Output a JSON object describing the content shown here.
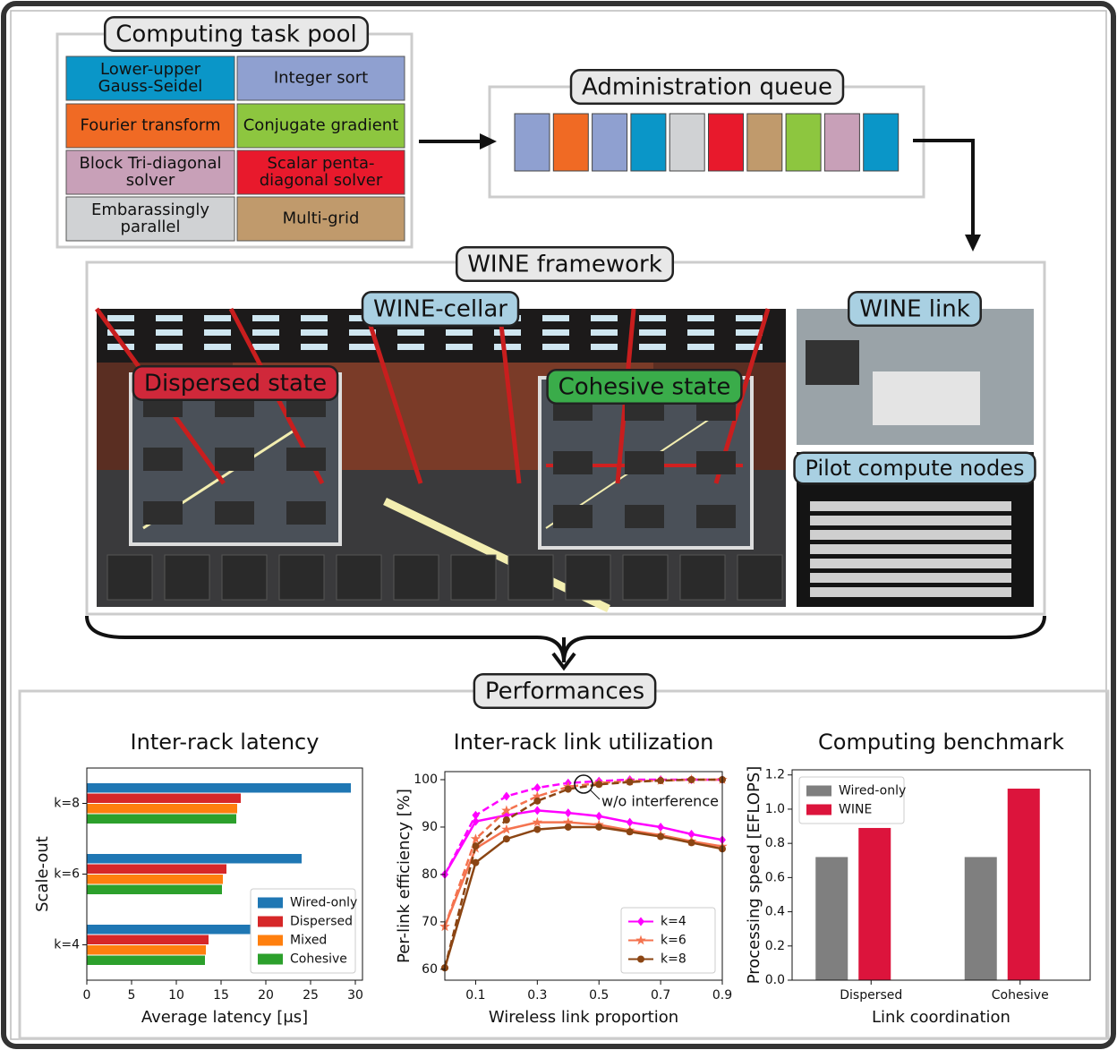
{
  "task_pool": {
    "title": "Computing task pool",
    "tasks": [
      {
        "lines": [
          "Lower-upper",
          "Gauss-Seidel"
        ],
        "color": "#0a96c8"
      },
      {
        "lines": [
          "Integer sort"
        ],
        "color": "#8fa0d0"
      },
      {
        "lines": [
          "Fourier transform"
        ],
        "color": "#f06a24"
      },
      {
        "lines": [
          "Conjugate gradient"
        ],
        "color": "#8dc63f"
      },
      {
        "lines": [
          "Block Tri-diagonal",
          "solver"
        ],
        "color": "#c8a0b8"
      },
      {
        "lines": [
          "Scalar penta-",
          "diagonal solver"
        ],
        "color": "#e8192c"
      },
      {
        "lines": [
          "Embarassingly",
          "parallel"
        ],
        "color": "#d0d2d4"
      },
      {
        "lines": [
          "Multi-grid"
        ],
        "color": "#c09a6c"
      }
    ]
  },
  "queue": {
    "title": "Administration queue",
    "colors": [
      "#8fa0d0",
      "#f06a24",
      "#8fa0d0",
      "#0a96c8",
      "#d0d2d4",
      "#e8192c",
      "#c09a6c",
      "#8dc63f",
      "#c8a0b8",
      "#0a96c8"
    ]
  },
  "framework": {
    "title": "WINE framework",
    "cellar": "WINE-cellar",
    "dispersed": "Dispersed state",
    "cohesive": "Cohesive state",
    "link": "WINE link",
    "nodes": "Pilot compute nodes"
  },
  "performances": {
    "title": "Performances"
  },
  "chart_data": [
    {
      "type": "barh",
      "title": "Inter-rack latency",
      "xlabel": "Average latency [μs]",
      "ylabel": "Scale-out",
      "categories": [
        "k=4",
        "k=6",
        "k=8"
      ],
      "series": [
        {
          "name": "Wired-only",
          "color": "#1f77b4",
          "values": [
            18.5,
            24,
            29.5
          ]
        },
        {
          "name": "Dispersed",
          "color": "#d62728",
          "values": [
            13.6,
            15.6,
            17.2
          ]
        },
        {
          "name": "Mixed",
          "color": "#ff7f0e",
          "values": [
            13.3,
            15.2,
            16.8
          ]
        },
        {
          "name": "Cohesive",
          "color": "#2ca02c",
          "values": [
            13.2,
            15.1,
            16.7
          ]
        }
      ],
      "xlim": [
        0,
        30.8
      ],
      "xticks": [
        0,
        5,
        10,
        15,
        20,
        25,
        30
      ],
      "legend": "lower right"
    },
    {
      "type": "line",
      "title": "Inter-rack link utilization",
      "xlabel": "Wireless link proportion",
      "ylabel": "Per-link efficiency [%]",
      "annotation": "w/o interference",
      "x": [
        0,
        0.1,
        0.2,
        0.3,
        0.4,
        0.5,
        0.6,
        0.7,
        0.8,
        0.9
      ],
      "series": [
        {
          "name": "k=4",
          "color": "#ff00ff",
          "marker": "diamond",
          "values": [
            80,
            91.2,
            92.5,
            93.5,
            93,
            92.3,
            91,
            90,
            88.5,
            87.3
          ],
          "values_wo_interference": [
            80,
            92.5,
            96.5,
            98.3,
            99.3,
            99.7,
            100,
            100,
            100,
            100
          ]
        },
        {
          "name": "k=6",
          "color": "#f4734f",
          "marker": "star",
          "values": [
            69,
            85.5,
            89.5,
            91,
            91,
            90.5,
            89.3,
            88.3,
            87,
            85.9
          ],
          "values_wo_interference": [
            69,
            87.5,
            93.5,
            96.5,
            98.5,
            99.3,
            99.7,
            99.8,
            100,
            100
          ]
        },
        {
          "name": "k=8",
          "color": "#8b4513",
          "marker": "circle",
          "values": [
            60.3,
            82.5,
            87.5,
            89.5,
            90,
            90,
            89,
            88,
            86.7,
            85.4
          ],
          "values_wo_interference": [
            60.3,
            86,
            91.5,
            95.5,
            98,
            99,
            99.5,
            99.8,
            100,
            100
          ]
        }
      ],
      "xlim": [
        0,
        0.9
      ],
      "xticks": [
        0.1,
        0.3,
        0.5,
        0.7,
        0.9
      ],
      "ylim": [
        57.7,
        101.7
      ],
      "yticks": [
        60,
        70,
        80,
        90,
        100
      ],
      "legend": "lower right"
    },
    {
      "type": "bar",
      "title": "Computing benchmark",
      "xlabel": "Link coordination",
      "ylabel": "Processing speed [EFLOPS]",
      "categories": [
        "Dispersed",
        "Cohesive"
      ],
      "series": [
        {
          "name": "Wired-only",
          "color": "#7f7f7f",
          "values": [
            0.72,
            0.72
          ]
        },
        {
          "name": "WINE",
          "color": "#dc143c",
          "values": [
            0.89,
            1.12
          ]
        }
      ],
      "ylim": [
        0,
        1.23
      ],
      "yticks": [
        {
          "value": 0,
          "label": "0.0"
        },
        0.2,
        0.4,
        0.6,
        0.8,
        {
          "value": 1,
          "label": "1.0"
        },
        1.2
      ],
      "legend": "upper left"
    }
  ]
}
